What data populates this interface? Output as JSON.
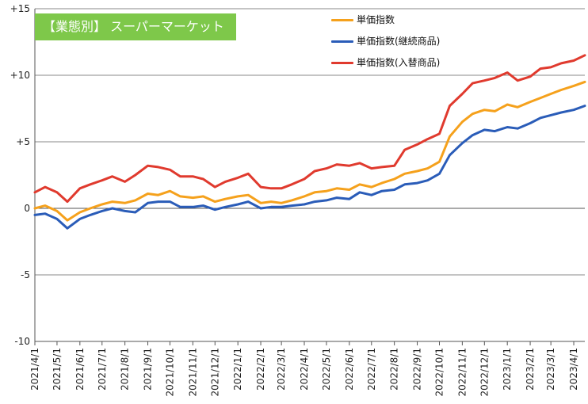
{
  "chart_data": {
    "type": "line",
    "title": "【業態別】 スーパーマーケット",
    "ylim": [
      -10,
      15
    ],
    "yticks": [
      {
        "value": 15,
        "label": "+15"
      },
      {
        "value": 10,
        "label": "+10"
      },
      {
        "value": 5,
        "label": "+5"
      },
      {
        "value": 0,
        "label": "0"
      },
      {
        "value": -5,
        "label": "-5"
      },
      {
        "value": -10,
        "label": "-10"
      }
    ],
    "x_start": "2021-04-01",
    "x_end": "2023-04-16",
    "xtick_labels": [
      "2021/4/1",
      "2021/5/1",
      "2021/6/1",
      "2021/7/1",
      "2021/8/1",
      "2021/9/1",
      "2021/10/1",
      "2021/11/1",
      "2021/12/1",
      "2022/1/1",
      "2022/2/1",
      "2022/3/1",
      "2022/4/1",
      "2022/5/1",
      "2022/6/1",
      "2022/7/1",
      "2022/8/1",
      "2022/9/1",
      "2022/10/1",
      "2022/11/1",
      "2022/12/1",
      "2023/1/1",
      "2023/2/1",
      "2023/3/1",
      "2023/4/1"
    ],
    "legend_position": "top-right",
    "grid": "horizontal",
    "series": [
      {
        "name": "単価指数",
        "color": "#f5a11c",
        "points": [
          [
            "2021-04-01",
            0.0
          ],
          [
            "2021-04-15",
            0.2
          ],
          [
            "2021-05-01",
            -0.2
          ],
          [
            "2021-05-15",
            -0.9
          ],
          [
            "2021-06-01",
            -0.3
          ],
          [
            "2021-06-15",
            0.0
          ],
          [
            "2021-07-01",
            0.3
          ],
          [
            "2021-07-15",
            0.5
          ],
          [
            "2021-08-01",
            0.4
          ],
          [
            "2021-08-15",
            0.6
          ],
          [
            "2021-09-01",
            1.1
          ],
          [
            "2021-09-15",
            1.0
          ],
          [
            "2021-10-01",
            1.3
          ],
          [
            "2021-10-15",
            0.9
          ],
          [
            "2021-11-01",
            0.8
          ],
          [
            "2021-11-15",
            0.9
          ],
          [
            "2021-12-01",
            0.5
          ],
          [
            "2021-12-15",
            0.7
          ],
          [
            "2022-01-01",
            0.9
          ],
          [
            "2022-01-15",
            1.0
          ],
          [
            "2022-02-01",
            0.4
          ],
          [
            "2022-02-15",
            0.5
          ],
          [
            "2022-03-01",
            0.4
          ],
          [
            "2022-03-15",
            0.6
          ],
          [
            "2022-04-01",
            0.9
          ],
          [
            "2022-04-15",
            1.2
          ],
          [
            "2022-05-01",
            1.3
          ],
          [
            "2022-05-15",
            1.5
          ],
          [
            "2022-06-01",
            1.4
          ],
          [
            "2022-06-15",
            1.8
          ],
          [
            "2022-07-01",
            1.6
          ],
          [
            "2022-07-15",
            1.9
          ],
          [
            "2022-08-01",
            2.2
          ],
          [
            "2022-08-15",
            2.6
          ],
          [
            "2022-09-01",
            2.8
          ],
          [
            "2022-09-15",
            3.0
          ],
          [
            "2022-10-01",
            3.5
          ],
          [
            "2022-10-15",
            5.4
          ],
          [
            "2022-11-01",
            6.5
          ],
          [
            "2022-11-15",
            7.1
          ],
          [
            "2022-12-01",
            7.4
          ],
          [
            "2022-12-15",
            7.3
          ],
          [
            "2023-01-01",
            7.8
          ],
          [
            "2023-01-15",
            7.6
          ],
          [
            "2023-02-01",
            8.0
          ],
          [
            "2023-02-15",
            8.3
          ],
          [
            "2023-03-01",
            8.6
          ],
          [
            "2023-03-15",
            8.9
          ],
          [
            "2023-04-01",
            9.2
          ],
          [
            "2023-04-16",
            9.5
          ]
        ]
      },
      {
        "name": "単価指数(継続商品)",
        "color": "#2a5cb8",
        "points": [
          [
            "2021-04-01",
            -0.5
          ],
          [
            "2021-04-15",
            -0.4
          ],
          [
            "2021-05-01",
            -0.8
          ],
          [
            "2021-05-15",
            -1.5
          ],
          [
            "2021-06-01",
            -0.8
          ],
          [
            "2021-06-15",
            -0.5
          ],
          [
            "2021-07-01",
            -0.2
          ],
          [
            "2021-07-15",
            0.0
          ],
          [
            "2021-08-01",
            -0.2
          ],
          [
            "2021-08-15",
            -0.3
          ],
          [
            "2021-09-01",
            0.4
          ],
          [
            "2021-09-15",
            0.5
          ],
          [
            "2021-10-01",
            0.5
          ],
          [
            "2021-10-15",
            0.1
          ],
          [
            "2021-11-01",
            0.1
          ],
          [
            "2021-11-15",
            0.2
          ],
          [
            "2021-12-01",
            -0.1
          ],
          [
            "2021-12-15",
            0.1
          ],
          [
            "2022-01-01",
            0.3
          ],
          [
            "2022-01-15",
            0.5
          ],
          [
            "2022-02-01",
            0.0
          ],
          [
            "2022-02-15",
            0.1
          ],
          [
            "2022-03-01",
            0.1
          ],
          [
            "2022-03-15",
            0.2
          ],
          [
            "2022-04-01",
            0.3
          ],
          [
            "2022-04-15",
            0.5
          ],
          [
            "2022-05-01",
            0.6
          ],
          [
            "2022-05-15",
            0.8
          ],
          [
            "2022-06-01",
            0.7
          ],
          [
            "2022-06-15",
            1.2
          ],
          [
            "2022-07-01",
            1.0
          ],
          [
            "2022-07-15",
            1.3
          ],
          [
            "2022-08-01",
            1.4
          ],
          [
            "2022-08-15",
            1.8
          ],
          [
            "2022-09-01",
            1.9
          ],
          [
            "2022-09-15",
            2.1
          ],
          [
            "2022-10-01",
            2.6
          ],
          [
            "2022-10-15",
            4.0
          ],
          [
            "2022-11-01",
            4.9
          ],
          [
            "2022-11-15",
            5.5
          ],
          [
            "2022-12-01",
            5.9
          ],
          [
            "2022-12-15",
            5.8
          ],
          [
            "2023-01-01",
            6.1
          ],
          [
            "2023-01-15",
            6.0
          ],
          [
            "2023-02-01",
            6.4
          ],
          [
            "2023-02-15",
            6.8
          ],
          [
            "2023-03-01",
            7.0
          ],
          [
            "2023-03-15",
            7.2
          ],
          [
            "2023-04-01",
            7.4
          ],
          [
            "2023-04-16",
            7.7
          ]
        ]
      },
      {
        "name": "単価指数(入替商品)",
        "color": "#e03a2e",
        "points": [
          [
            "2021-04-01",
            1.2
          ],
          [
            "2021-04-15",
            1.6
          ],
          [
            "2021-05-01",
            1.2
          ],
          [
            "2021-05-15",
            0.5
          ],
          [
            "2021-06-01",
            1.5
          ],
          [
            "2021-06-15",
            1.8
          ],
          [
            "2021-07-01",
            2.1
          ],
          [
            "2021-07-15",
            2.4
          ],
          [
            "2021-08-01",
            2.0
          ],
          [
            "2021-08-15",
            2.5
          ],
          [
            "2021-09-01",
            3.2
          ],
          [
            "2021-09-15",
            3.1
          ],
          [
            "2021-10-01",
            2.9
          ],
          [
            "2021-10-15",
            2.4
          ],
          [
            "2021-11-01",
            2.4
          ],
          [
            "2021-11-15",
            2.2
          ],
          [
            "2021-12-01",
            1.6
          ],
          [
            "2021-12-15",
            2.0
          ],
          [
            "2022-01-01",
            2.3
          ],
          [
            "2022-01-15",
            2.6
          ],
          [
            "2022-02-01",
            1.6
          ],
          [
            "2022-02-15",
            1.5
          ],
          [
            "2022-03-01",
            1.5
          ],
          [
            "2022-03-15",
            1.8
          ],
          [
            "2022-04-01",
            2.2
          ],
          [
            "2022-04-15",
            2.8
          ],
          [
            "2022-05-01",
            3.0
          ],
          [
            "2022-05-15",
            3.3
          ],
          [
            "2022-06-01",
            3.2
          ],
          [
            "2022-06-15",
            3.4
          ],
          [
            "2022-07-01",
            3.0
          ],
          [
            "2022-07-15",
            3.1
          ],
          [
            "2022-08-01",
            3.2
          ],
          [
            "2022-08-15",
            4.4
          ],
          [
            "2022-09-01",
            4.8
          ],
          [
            "2022-09-15",
            5.2
          ],
          [
            "2022-10-01",
            5.6
          ],
          [
            "2022-10-15",
            7.7
          ],
          [
            "2022-11-01",
            8.6
          ],
          [
            "2022-11-15",
            9.4
          ],
          [
            "2022-12-01",
            9.6
          ],
          [
            "2022-12-15",
            9.8
          ],
          [
            "2023-01-01",
            10.2
          ],
          [
            "2023-01-15",
            9.6
          ],
          [
            "2023-02-01",
            9.9
          ],
          [
            "2023-02-15",
            10.5
          ],
          [
            "2023-03-01",
            10.6
          ],
          [
            "2023-03-15",
            10.9
          ],
          [
            "2023-04-01",
            11.1
          ],
          [
            "2023-04-16",
            11.5
          ]
        ]
      }
    ]
  }
}
